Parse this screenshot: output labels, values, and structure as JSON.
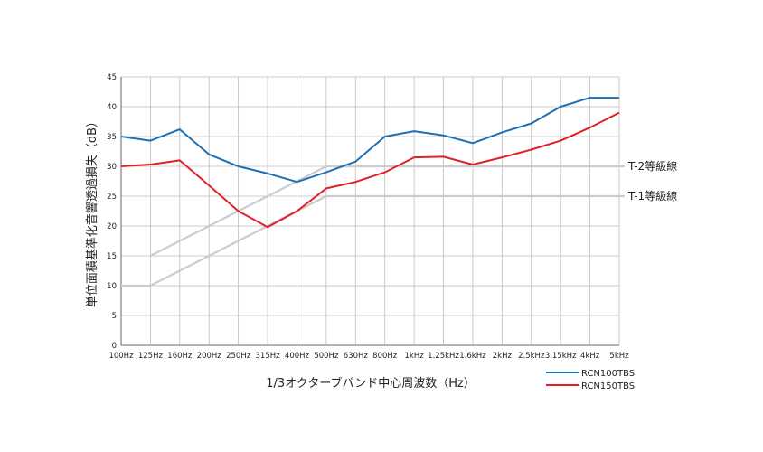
{
  "chart_data": {
    "type": "line",
    "xlabel": "1/3オクターブバンド中心周波数（Hz）",
    "ylabel": "単位面積基準化音響透過損失（dB）",
    "ylim": [
      0,
      45
    ],
    "yticks": [
      0,
      5,
      10,
      15,
      20,
      25,
      30,
      35,
      40,
      45
    ],
    "categories": [
      "100Hz",
      "125Hz",
      "160Hz",
      "200Hz",
      "250Hz",
      "315Hz",
      "400Hz",
      "500Hz",
      "630Hz",
      "800Hz",
      "1kHz",
      "1.25kHz",
      "1.6kHz",
      "2kHz",
      "2.5kHz",
      "3.15kHz",
      "4kHz",
      "5kHz"
    ],
    "grid": true,
    "legend_position": "bottom-right",
    "series": [
      {
        "name": "RCN100TBS",
        "color": "#1f6fb5",
        "values": [
          35,
          34.3,
          36.2,
          32,
          30,
          28.8,
          27.4,
          29,
          30.8,
          35,
          35.9,
          35.2,
          33.9,
          35.7,
          37.2,
          40,
          41.5,
          41.5
        ]
      },
      {
        "name": "RCN150TBS",
        "color": "#e0202a",
        "values": [
          30,
          30.3,
          31,
          26.8,
          22.5,
          19.8,
          22.5,
          26.3,
          27.4,
          29,
          31.5,
          31.6,
          30.3,
          31.5,
          32.8,
          34.3,
          36.5,
          39
        ]
      }
    ],
    "grade_lines": [
      {
        "name": "T-2等級線",
        "color": "#cccccc",
        "values": [
          null,
          15,
          17.5,
          20,
          22.5,
          25,
          27.5,
          30,
          30,
          30,
          30,
          30,
          30,
          30,
          30,
          30,
          30,
          30
        ]
      },
      {
        "name": "T-1等級線",
        "color": "#cccccc",
        "values": [
          10,
          10,
          12.5,
          15,
          17.5,
          20,
          22.5,
          25,
          25,
          25,
          25,
          25,
          25,
          25,
          25,
          25,
          25,
          25
        ]
      }
    ]
  }
}
